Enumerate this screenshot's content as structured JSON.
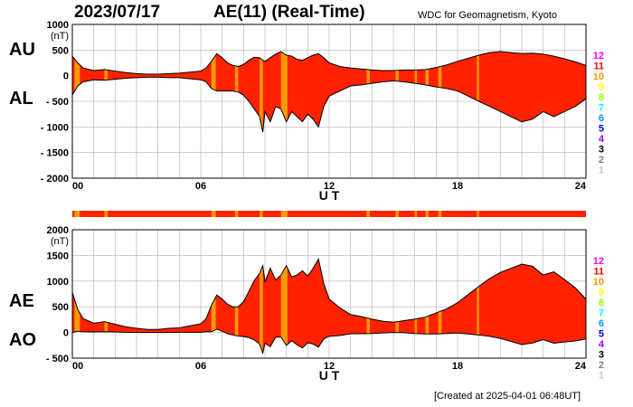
{
  "header": {
    "date": "2023/07/17",
    "title": "AE(11) (Real-Time)",
    "organization": "WDC for Geomagnetism, Kyoto"
  },
  "footer": {
    "created": "[Created at 2025-04-01 06:48UT]"
  },
  "station_count_legend": {
    "labels": [
      "12",
      "11",
      "10",
      "9",
      "8",
      "7",
      "6",
      "5",
      "4",
      "3",
      "2",
      "1"
    ],
    "colors": [
      "#ff00ff",
      "#ff0000",
      "#ff9900",
      "#ffff00",
      "#99ff00",
      "#00ffff",
      "#0099ff",
      "#0000ff",
      "#9900ff",
      "#000000",
      "#808080",
      "#c8c8c8"
    ]
  },
  "chart_data": [
    {
      "type": "area",
      "panel": "AU/AL",
      "upper_series_label": "AU",
      "lower_series_label": "AL",
      "y_unit": "(nT)",
      "ylim": [
        -2000,
        1000
      ],
      "yticks": [
        1000,
        500,
        0,
        -500,
        -1000,
        -1500,
        -2000
      ],
      "ytick_labels": [
        "1000",
        "500",
        "0",
        "- 500",
        "- 1000",
        "- 1500",
        "- 2000"
      ],
      "xlabel": "U T",
      "xlim": [
        0,
        24
      ],
      "xticks": [
        0,
        6,
        12,
        18,
        24
      ],
      "xtick_labels": [
        "00",
        "06",
        "12",
        "18",
        "24"
      ],
      "grid": true,
      "fill_color": "#ff2200",
      "x": [
        0,
        0.25,
        0.5,
        1,
        1.5,
        2,
        2.5,
        3,
        3.5,
        4,
        4.5,
        5,
        5.5,
        6,
        6.25,
        6.5,
        6.75,
        7,
        7.25,
        7.5,
        7.75,
        8,
        8.25,
        8.5,
        8.75,
        8.9,
        9,
        9.25,
        9.5,
        9.75,
        10,
        10.25,
        10.5,
        10.75,
        11,
        11.25,
        11.5,
        11.75,
        12,
        12.5,
        13,
        13.5,
        14,
        14.5,
        15,
        15.5,
        16,
        16.5,
        17,
        17.5,
        18,
        18.5,
        19,
        19.5,
        20,
        20.5,
        21,
        21.5,
        22,
        22.5,
        23,
        23.5,
        24
      ],
      "au": [
        380,
        250,
        150,
        100,
        120,
        90,
        60,
        40,
        30,
        30,
        40,
        50,
        70,
        90,
        150,
        280,
        430,
        350,
        250,
        200,
        180,
        220,
        300,
        360,
        350,
        300,
        280,
        350,
        420,
        470,
        400,
        380,
        320,
        300,
        350,
        400,
        430,
        350,
        250,
        180,
        150,
        130,
        110,
        100,
        100,
        110,
        110,
        120,
        160,
        210,
        280,
        340,
        400,
        450,
        470,
        450,
        430,
        440,
        420,
        380,
        330,
        270,
        200
      ],
      "al": [
        -380,
        -200,
        -120,
        -80,
        -90,
        -70,
        -50,
        -40,
        -30,
        -30,
        -40,
        -40,
        -60,
        -80,
        -120,
        -250,
        -300,
        -300,
        -300,
        -300,
        -320,
        -380,
        -500,
        -650,
        -800,
        -1100,
        -700,
        -900,
        -600,
        -650,
        -900,
        -700,
        -800,
        -900,
        -750,
        -850,
        -1000,
        -600,
        -400,
        -300,
        -200,
        -180,
        -150,
        -120,
        -100,
        -120,
        -150,
        -180,
        -220,
        -250,
        -300,
        -400,
        -500,
        -600,
        -700,
        -800,
        -900,
        -850,
        -700,
        -800,
        -700,
        -600,
        -450
      ]
    },
    {
      "type": "area",
      "panel": "AE/AO",
      "upper_series_label": "AE",
      "lower_series_label": "AO",
      "y_unit": "(nT)",
      "ylim": [
        -500,
        2000
      ],
      "yticks": [
        2000,
        1500,
        1000,
        500,
        0,
        -500
      ],
      "ytick_labels": [
        "2000",
        "1500",
        "1000",
        "500",
        "0",
        "- 500"
      ],
      "xlabel": "U T",
      "xlim": [
        0,
        24
      ],
      "xticks": [
        0,
        6,
        12,
        18,
        24
      ],
      "xtick_labels": [
        "00",
        "06",
        "12",
        "18",
        "24"
      ],
      "grid": true,
      "fill_color": "#ff2200",
      "x": [
        0,
        0.25,
        0.5,
        1,
        1.5,
        2,
        2.5,
        3,
        3.5,
        4,
        4.5,
        5,
        5.5,
        6,
        6.25,
        6.5,
        6.75,
        7,
        7.25,
        7.5,
        7.75,
        8,
        8.25,
        8.5,
        8.75,
        8.9,
        9,
        9.25,
        9.5,
        9.75,
        10,
        10.25,
        10.5,
        10.75,
        11,
        11.25,
        11.5,
        11.75,
        12,
        12.5,
        13,
        13.5,
        14,
        14.5,
        15,
        15.5,
        16,
        16.5,
        17,
        17.5,
        18,
        18.5,
        19,
        19.5,
        20,
        20.5,
        21,
        21.5,
        22,
        22.5,
        23,
        23.5,
        24
      ],
      "ae": [
        780,
        450,
        270,
        180,
        210,
        160,
        110,
        80,
        60,
        60,
        80,
        90,
        130,
        170,
        270,
        530,
        730,
        650,
        550,
        500,
        500,
        600,
        800,
        1010,
        1150,
        1300,
        980,
        1250,
        1020,
        1120,
        1300,
        1080,
        1120,
        1200,
        1100,
        1250,
        1430,
        950,
        650,
        480,
        350,
        310,
        260,
        220,
        200,
        230,
        260,
        300,
        380,
        460,
        580,
        740,
        900,
        1050,
        1170,
        1250,
        1330,
        1290,
        1120,
        1180,
        1030,
        870,
        650
      ],
      "ao": [
        0,
        25,
        15,
        10,
        15,
        10,
        5,
        0,
        0,
        0,
        0,
        5,
        5,
        5,
        15,
        15,
        65,
        25,
        -25,
        -50,
        -70,
        -80,
        -100,
        -145,
        -225,
        -400,
        -210,
        -275,
        -90,
        -90,
        -250,
        -160,
        -240,
        -300,
        -200,
        -225,
        -285,
        -125,
        -75,
        -60,
        -25,
        -25,
        -20,
        -10,
        0,
        -5,
        -20,
        -30,
        -30,
        -20,
        -10,
        -30,
        -50,
        -75,
        -115,
        -175,
        -235,
        -205,
        -140,
        -210,
        -185,
        -165,
        -125
      ]
    }
  ],
  "station_strip": {
    "base_color": "#ff2200",
    "highlight_color": "#ff9900",
    "highlight_intervals": [
      [
        0.1,
        0.35
      ],
      [
        1.5,
        1.65
      ],
      [
        6.5,
        6.7
      ],
      [
        7.6,
        7.75
      ],
      [
        8.75,
        8.9
      ],
      [
        9.75,
        10.05
      ],
      [
        13.75,
        13.9
      ],
      [
        15.1,
        15.25
      ],
      [
        16.0,
        16.1
      ],
      [
        16.5,
        16.65
      ],
      [
        17.1,
        17.25
      ],
      [
        18.9,
        19.0
      ]
    ]
  }
}
